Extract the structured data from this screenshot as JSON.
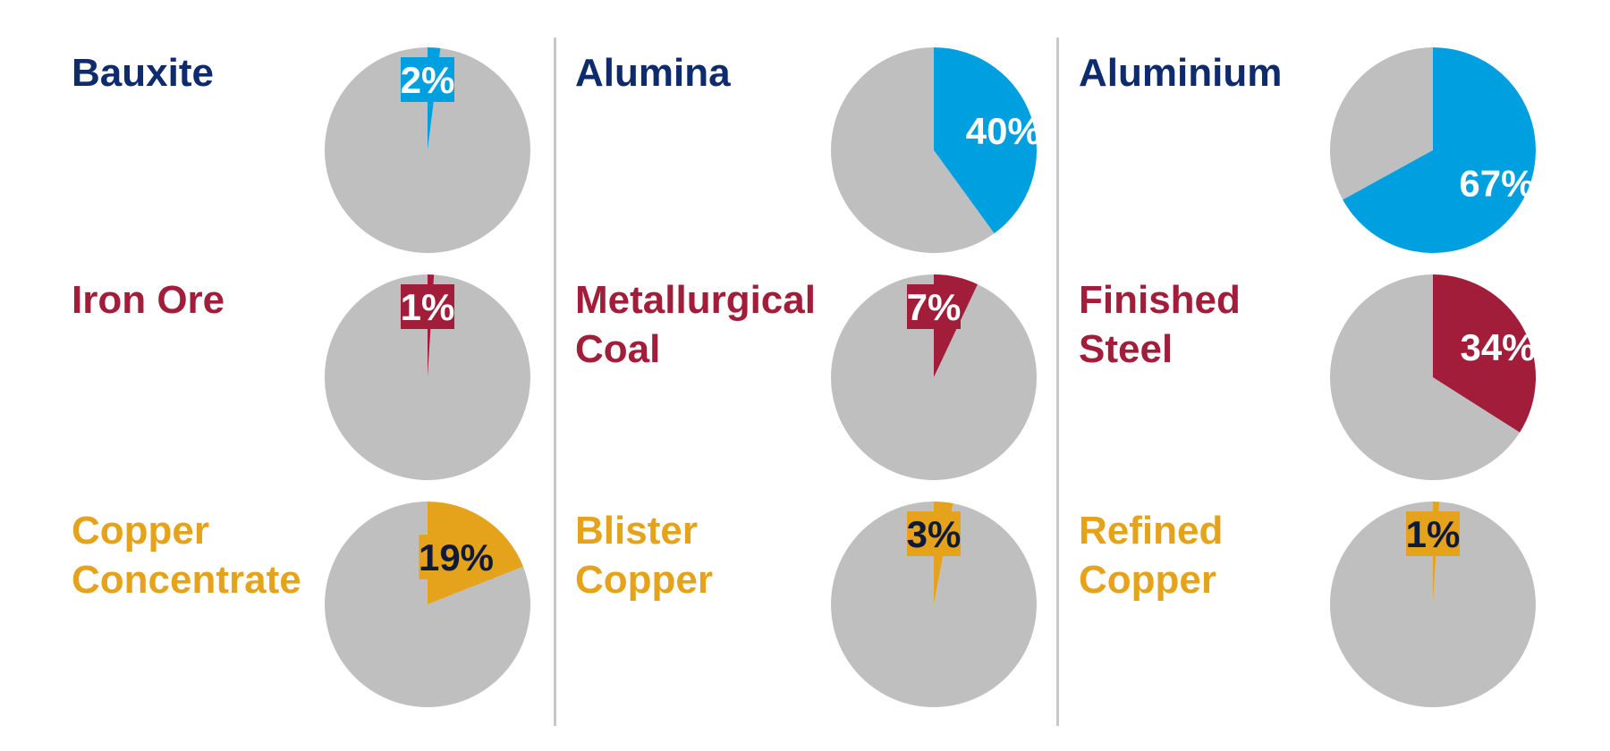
{
  "colors": {
    "blue": "#009fdf",
    "red": "#a11d3a",
    "gold": "#e5a21b",
    "navy": "#0e2b6e",
    "grey": "#bfbfbf",
    "white": "#ffffff",
    "dark": "#0f1a36"
  },
  "chart_data": [
    {
      "type": "pie",
      "title": "Bauxite",
      "label": "2%",
      "values": [
        2,
        98
      ],
      "color": "blue",
      "title_color": "navy",
      "label_color": "white",
      "label_box": true
    },
    {
      "type": "pie",
      "title": "Alumina",
      "label": "40%",
      "values": [
        40,
        60
      ],
      "color": "blue",
      "title_color": "navy",
      "label_color": "white",
      "label_box": false
    },
    {
      "type": "pie",
      "title": "Aluminium",
      "label": "67%",
      "values": [
        67,
        33
      ],
      "color": "blue",
      "title_color": "navy",
      "label_color": "white",
      "label_box": false
    },
    {
      "type": "pie",
      "title": "Iron Ore",
      "label": "1%",
      "values": [
        1,
        99
      ],
      "color": "red",
      "title_color": "red",
      "label_color": "white",
      "label_box": true
    },
    {
      "type": "pie",
      "title": "Metallurgical Coal",
      "label": "7%",
      "values": [
        7,
        93
      ],
      "color": "red",
      "title_color": "red",
      "label_color": "white",
      "label_box": true
    },
    {
      "type": "pie",
      "title": "Finished Steel",
      "label": "34%",
      "values": [
        34,
        66
      ],
      "color": "red",
      "title_color": "red",
      "label_color": "white",
      "label_box": false
    },
    {
      "type": "pie",
      "title": "Copper Concentrate",
      "label": "19%",
      "values": [
        19,
        81
      ],
      "color": "gold",
      "title_color": "gold",
      "label_color": "dark",
      "label_box": true
    },
    {
      "type": "pie",
      "title": "Blister Copper",
      "label": "3%",
      "values": [
        3,
        97
      ],
      "color": "gold",
      "title_color": "gold",
      "label_color": "dark",
      "label_box": true
    },
    {
      "type": "pie",
      "title": "Refined Copper",
      "label": "1%",
      "values": [
        1,
        99
      ],
      "color": "gold",
      "title_color": "gold",
      "label_color": "dark",
      "label_box": true
    }
  ]
}
